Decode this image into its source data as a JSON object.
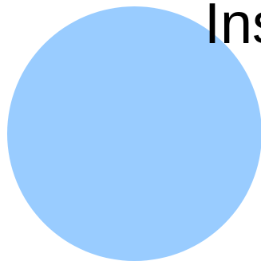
{
  "colors": {
    "background": "#ffffff",
    "circle_fill": "#99ccff",
    "text": "#000000"
  },
  "text": {
    "cropped_label": "Ins"
  }
}
